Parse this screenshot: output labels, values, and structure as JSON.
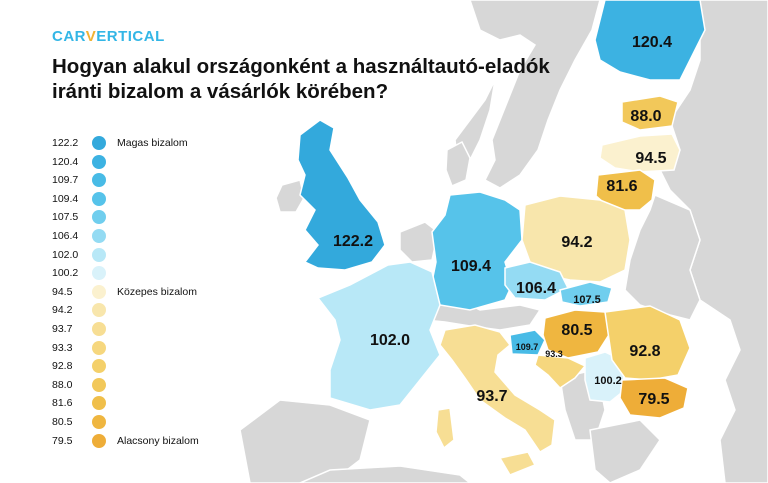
{
  "brand": {
    "logo_pre": "CAR",
    "logo_v": "V",
    "logo_post": "ERTICAL"
  },
  "title_line1": "Hogyan alakul országonként a használtautó-eladók",
  "title_line2": "iránti bizalom a vásárlók körében?",
  "colors": {
    "background": "#ffffff",
    "sea": "#ffffff",
    "other_land": "#d7d7d7",
    "border": "#ffffff"
  },
  "legend": {
    "categories": [
      {
        "label": "Magas bizalom",
        "at_index": 0
      },
      {
        "label": "Közepes bizalom",
        "at_index": 8
      },
      {
        "label": "Alacsony bizalom",
        "at_index": 16
      }
    ],
    "items": [
      {
        "value": "122.2",
        "color": "#33a9dc"
      },
      {
        "value": "120.4",
        "color": "#3cb2e2"
      },
      {
        "value": "109.7",
        "color": "#48bbe6"
      },
      {
        "value": "109.4",
        "color": "#56c3ea"
      },
      {
        "value": "107.5",
        "color": "#70ceee"
      },
      {
        "value": "106.4",
        "color": "#94dbf3"
      },
      {
        "value": "102.0",
        "color": "#b8e8f7"
      },
      {
        "value": "100.2",
        "color": "#d9f2fa"
      },
      {
        "value": "94.5",
        "color": "#fbf1cf"
      },
      {
        "value": "94.2",
        "color": "#f8e6ac"
      },
      {
        "value": "93.7",
        "color": "#f7de94"
      },
      {
        "value": "93.3",
        "color": "#f6d77e"
      },
      {
        "value": "92.8",
        "color": "#f4d06a"
      },
      {
        "value": "88.0",
        "color": "#f2c85a"
      },
      {
        "value": "81.6",
        "color": "#f0bf4a"
      },
      {
        "value": "80.5",
        "color": "#efb640"
      },
      {
        "value": "79.5",
        "color": "#eead38"
      }
    ]
  },
  "countries": [
    {
      "id": "uk",
      "value": "122.2",
      "color": "#33a9dc"
    },
    {
      "id": "finland",
      "value": "120.4",
      "color": "#3cb2e2"
    },
    {
      "id": "slovenia",
      "value": "109.7",
      "color": "#48bbe6"
    },
    {
      "id": "germany",
      "value": "109.4",
      "color": "#56c3ea"
    },
    {
      "id": "slovakia",
      "value": "107.5",
      "color": "#70ceee"
    },
    {
      "id": "czechia",
      "value": "106.4",
      "color": "#94dbf3"
    },
    {
      "id": "france",
      "value": "102.0",
      "color": "#b8e8f7"
    },
    {
      "id": "serbia",
      "value": "100.2",
      "color": "#d9f2fa"
    },
    {
      "id": "latvia",
      "value": "94.5",
      "color": "#fbf1cf"
    },
    {
      "id": "poland",
      "value": "94.2",
      "color": "#f8e6ac"
    },
    {
      "id": "italy",
      "value": "93.7",
      "color": "#f7de94"
    },
    {
      "id": "croatia",
      "value": "93.3",
      "color": "#f6d77e"
    },
    {
      "id": "romania",
      "value": "92.8",
      "color": "#f4d06a"
    },
    {
      "id": "estonia",
      "value": "88.0",
      "color": "#f2c85a"
    },
    {
      "id": "lithuania",
      "value": "81.6",
      "color": "#f0bf4a"
    },
    {
      "id": "hungary",
      "value": "80.5",
      "color": "#efb640"
    },
    {
      "id": "bulgaria",
      "value": "79.5",
      "color": "#eead38"
    }
  ]
}
